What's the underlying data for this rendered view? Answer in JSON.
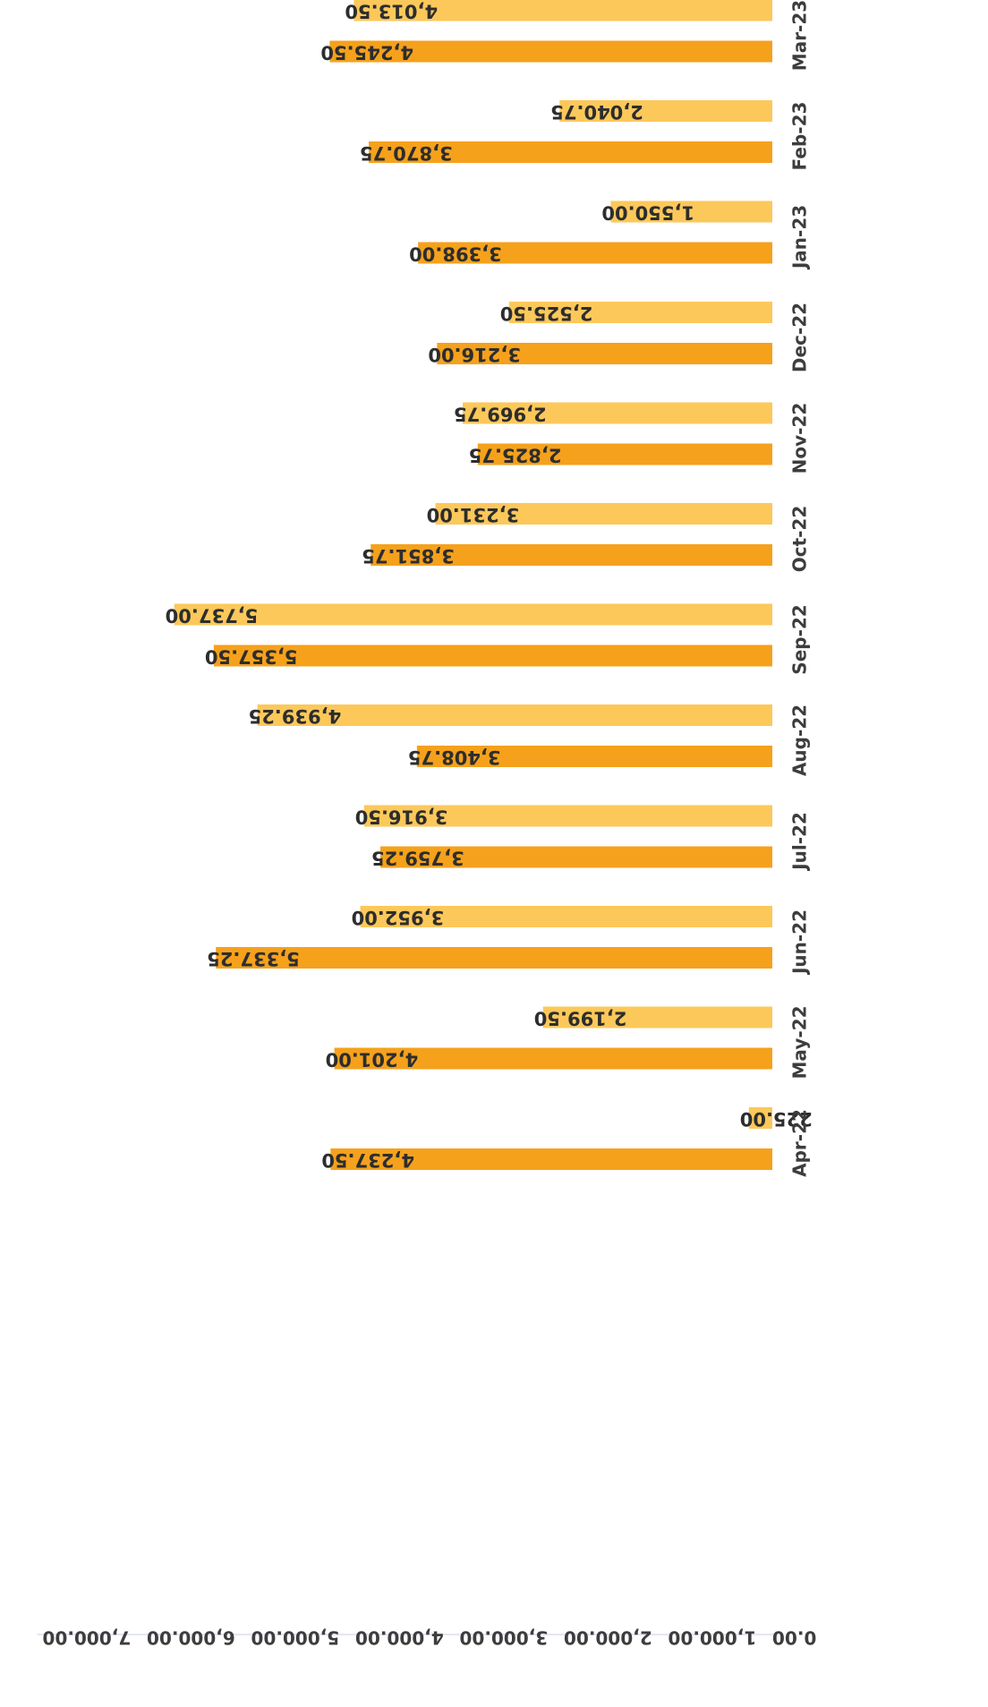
{
  "chart_data": {
    "type": "bar",
    "orientation": "vertical-rotated-180",
    "categories": [
      "Apr-22",
      "May-22",
      "Jun-22",
      "Jul-22",
      "Aug-22",
      "Sep-22",
      "Oct-22",
      "Nov-22",
      "Dec-22",
      "Jan-23",
      "Feb-23",
      "Mar-23"
    ],
    "series": [
      {
        "color": "#f5a11c",
        "values": [
          4237.5,
          4201.0,
          5337.25,
          3759.25,
          3408.75,
          5357.5,
          3851.75,
          2825.75,
          3216.0,
          3398.0,
          3870.75,
          4245.5
        ],
        "labels": [
          "4,237.50",
          "4,201.00",
          "5,337.25",
          "3,759.25",
          "3,408.75",
          "5,357.50",
          "3,851.75",
          "2,825.75",
          "3,216.00",
          "3,398.00",
          "3,870.75",
          "4,245.50"
        ]
      },
      {
        "color": "#fcc85a",
        "values": [
          225.0,
          2199.5,
          3952.0,
          3916.5,
          4939.25,
          5737.0,
          3231.0,
          2969.75,
          2525.5,
          1550.0,
          2040.75,
          4013.5
        ],
        "labels": [
          "225.00",
          "2,199.50",
          "3,952.00",
          "3,916.50",
          "4,939.25",
          "5,737.00",
          "3,231.00",
          "2,969.75",
          "2,525.50",
          "1,550.00",
          "2,040.75",
          "4,013.50"
        ]
      }
    ],
    "ylim": [
      0,
      7000
    ],
    "y_ticks": [
      0,
      1000,
      2000,
      3000,
      4000,
      5000,
      6000,
      7000
    ],
    "y_tick_labels": [
      "0.00",
      "1,000.00",
      "2,000.00",
      "3,000.00",
      "4,000.00",
      "5,000.00",
      "6,000.00",
      "7,000.00"
    ],
    "title": "",
    "xlabel": "",
    "ylabel": "",
    "grid": false,
    "legend": "none"
  }
}
